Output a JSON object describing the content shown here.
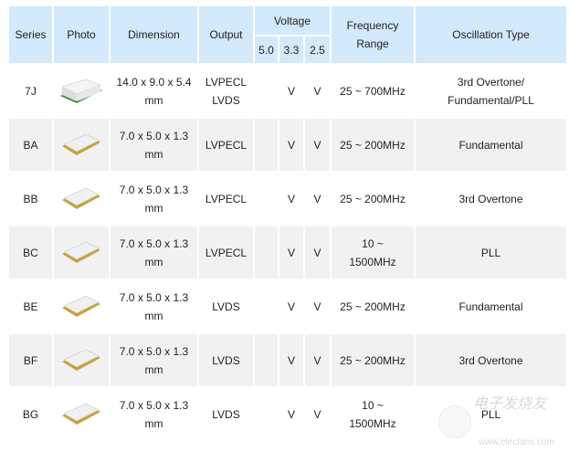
{
  "headers": {
    "series": "Series",
    "photo": "Photo",
    "dimension": "Dimension",
    "output": "Output",
    "voltage": "Voltage",
    "v50": "5.0",
    "v33": "3.3",
    "v25": "2.5",
    "frequency_l1": "Frequency",
    "frequency_l2": "Range",
    "oscillation": "Oscillation Type"
  },
  "rows": [
    {
      "series": "7J",
      "photo": "chip-large",
      "dim1": "14.0 x 9.0 x 5.4",
      "dim2": "mm",
      "out1": "LVPECL",
      "out2": "LVDS",
      "v50": "",
      "v33": "V",
      "v25": "V",
      "f1": "25 ~ 700MHz",
      "f2": "",
      "o1": "3rd Overtone/",
      "o2": "Fundamental/PLL"
    },
    {
      "series": "BA",
      "photo": "chip-small",
      "dim1": "7.0 x 5.0 x 1.3",
      "dim2": "mm",
      "out1": "LVPECL",
      "out2": "",
      "v50": "",
      "v33": "V",
      "v25": "V",
      "f1": "25 ~ 200MHz",
      "f2": "",
      "o1": "Fundamental",
      "o2": ""
    },
    {
      "series": "BB",
      "photo": "chip-small",
      "dim1": "7.0 x 5.0 x 1.3",
      "dim2": "mm",
      "out1": "LVPECL",
      "out2": "",
      "v50": "",
      "v33": "V",
      "v25": "V",
      "f1": "25 ~ 200MHz",
      "f2": "",
      "o1": "3rd Overtone",
      "o2": ""
    },
    {
      "series": "BC",
      "photo": "chip-small",
      "dim1": "7.0 x 5.0 x 1.3",
      "dim2": "mm",
      "out1": "LVPECL",
      "out2": "",
      "v50": "",
      "v33": "V",
      "v25": "V",
      "f1": "10 ~",
      "f2": "1500MHz",
      "o1": "PLL",
      "o2": ""
    },
    {
      "series": "BE",
      "photo": "chip-small",
      "dim1": "7.0 x 5.0 x 1.3",
      "dim2": "mm",
      "out1": "LVDS",
      "out2": "",
      "v50": "",
      "v33": "V",
      "v25": "V",
      "f1": "25 ~ 200MHz",
      "f2": "",
      "o1": "Fundamental",
      "o2": ""
    },
    {
      "series": "BF",
      "photo": "chip-small",
      "dim1": "7.0 x 5.0 x 1.3",
      "dim2": "mm",
      "out1": "LVDS",
      "out2": "",
      "v50": "",
      "v33": "V",
      "v25": "V",
      "f1": "25 ~ 200MHz",
      "f2": "",
      "o1": "3rd Overtone",
      "o2": ""
    },
    {
      "series": "BG",
      "photo": "chip-small",
      "dim1": "7.0 x 5.0 x 1.3",
      "dim2": "mm",
      "out1": "LVDS",
      "out2": "",
      "v50": "",
      "v33": "V",
      "v25": "V",
      "f1": "10 ~",
      "f2": "1500MHz",
      "o1": "PLL",
      "o2": ""
    }
  ],
  "watermark": {
    "cn": "电子发烧友",
    "url": "www.elecfans.com"
  }
}
